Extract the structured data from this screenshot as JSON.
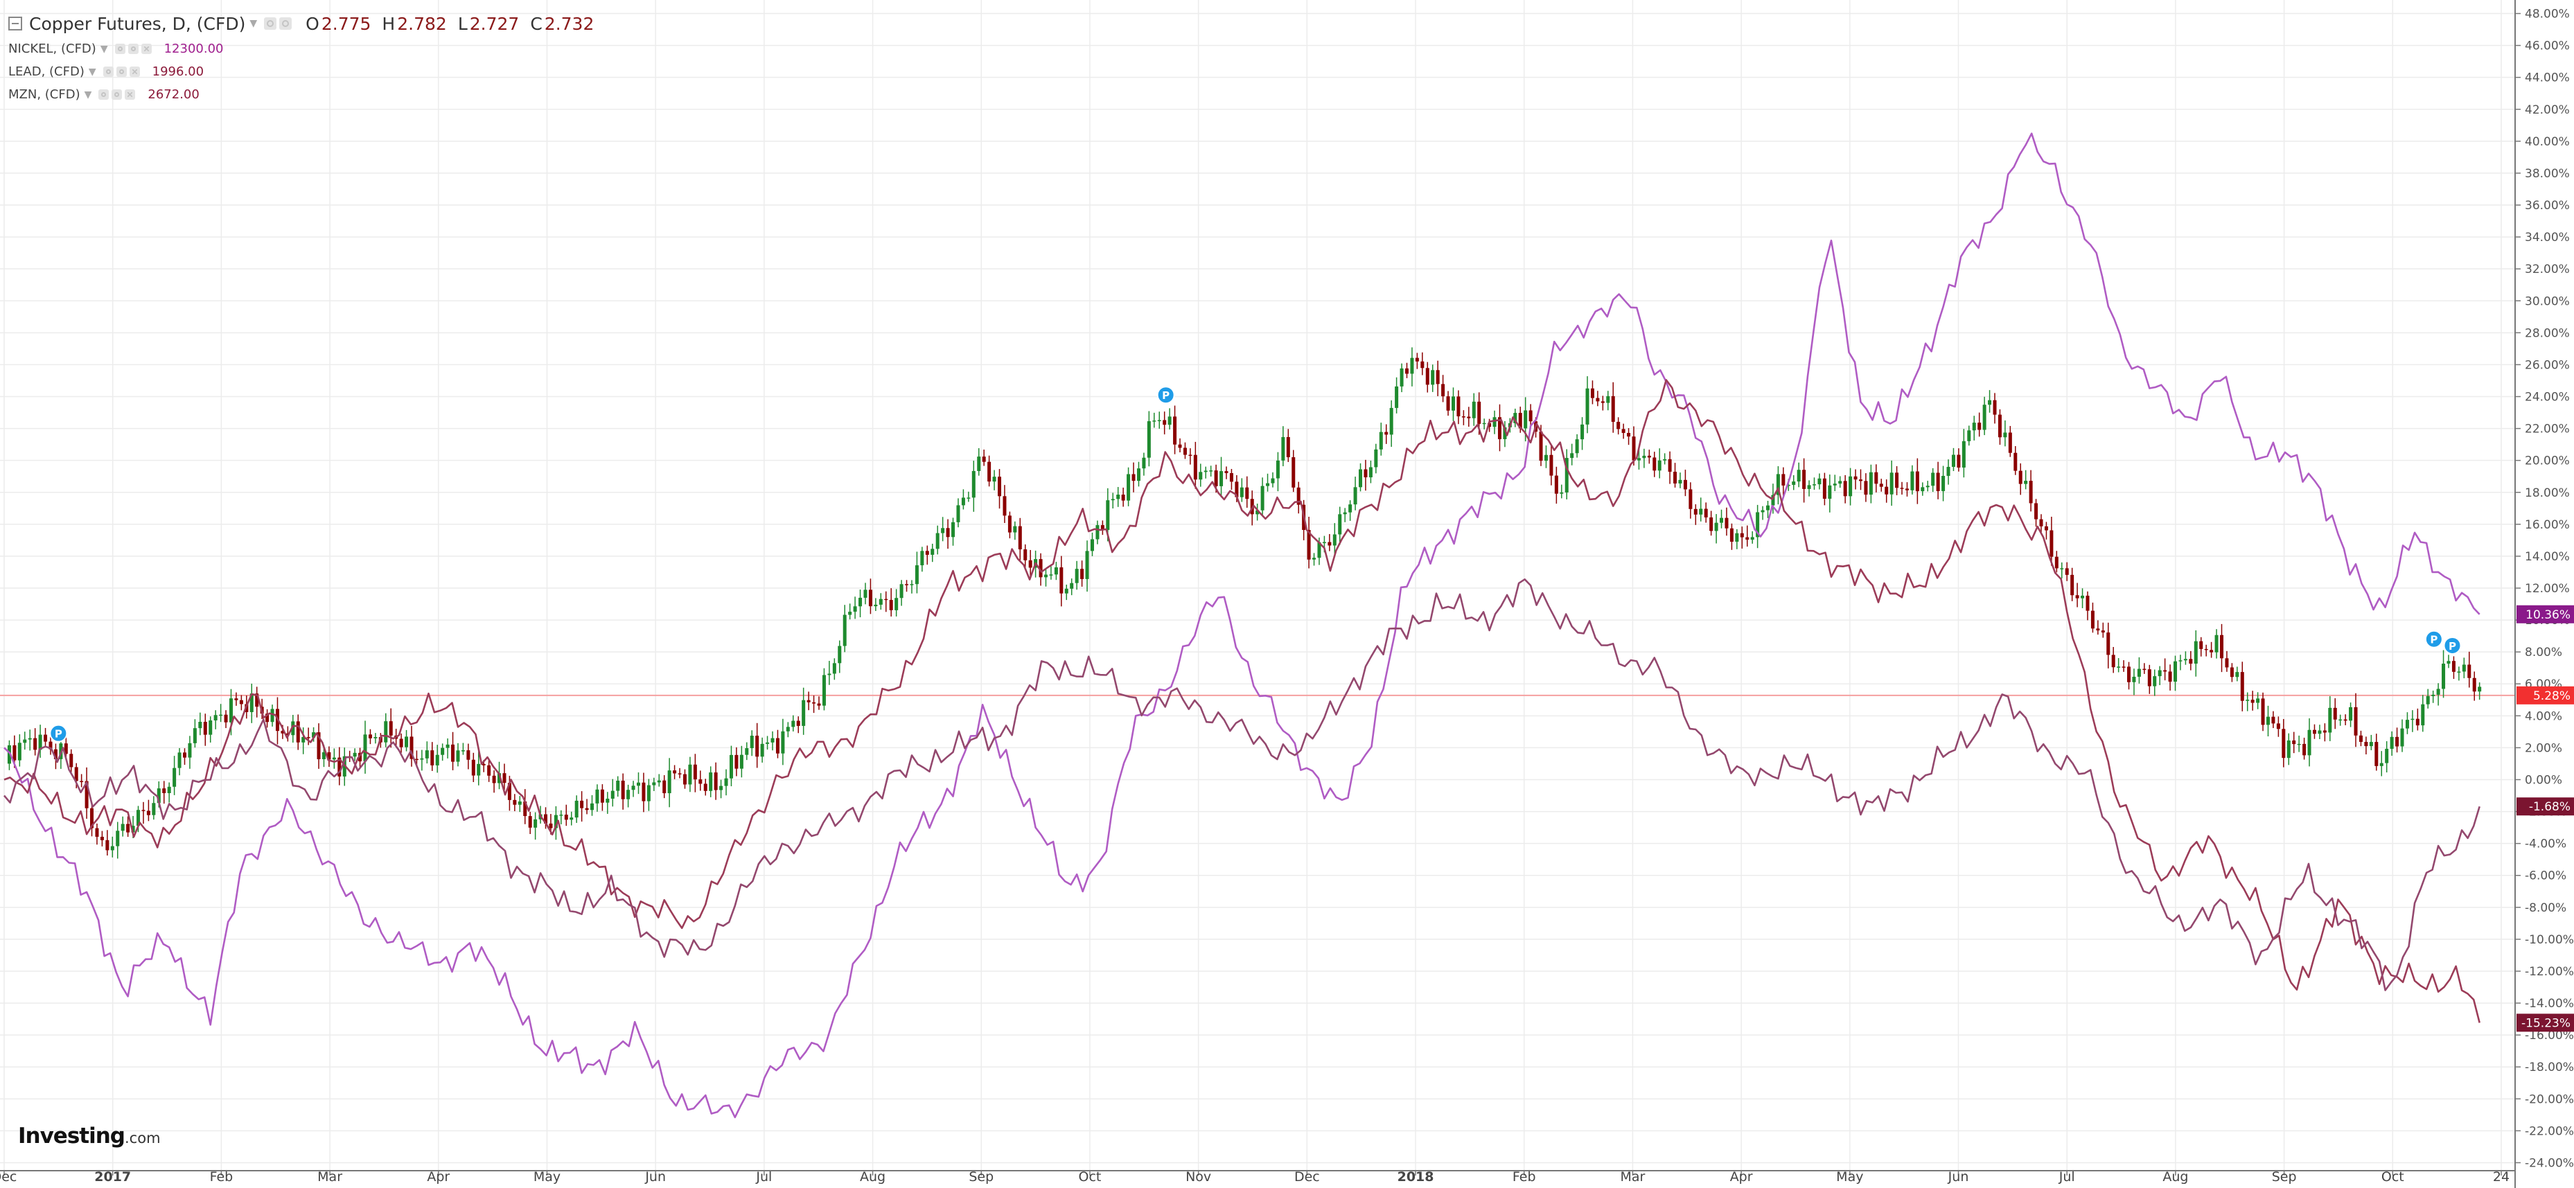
{
  "header": {
    "title": "Copper Futures, D, (CFD)",
    "ohlc": [
      {
        "label": "O",
        "value": "2.775"
      },
      {
        "label": "H",
        "value": "2.782"
      },
      {
        "label": "L",
        "value": "2.727"
      },
      {
        "label": "C",
        "value": "2.732"
      }
    ]
  },
  "overlays": [
    {
      "name": "NICKEL, (CFD)",
      "value": "12300.00",
      "color": "#b05cc4"
    },
    {
      "name": "LEAD, (CFD)",
      "value": "1996.00",
      "color": "#9c3c58"
    },
    {
      "name": "MZN, (CFD)",
      "value": "2672.00",
      "color": "#94486e"
    }
  ],
  "logo": {
    "name": "Investing",
    "suffix": ".com"
  },
  "chart_data": {
    "type": "candlestick_with_lines",
    "scale": "percent",
    "ylim": [
      -24.5,
      48.5
    ],
    "y_ticks": [
      "48.00%",
      "46.00%",
      "44.00%",
      "42.00%",
      "40.00%",
      "38.00%",
      "36.00%",
      "34.00%",
      "32.00%",
      "30.00%",
      "28.00%",
      "26.00%",
      "24.00%",
      "22.00%",
      "20.00%",
      "18.00%",
      "16.00%",
      "14.00%",
      "12.00%",
      "10.00%",
      "8.00%",
      "6.00%",
      "4.00%",
      "2.00%",
      "0.00%",
      "-2.00%",
      "-4.00%",
      "-6.00%",
      "-8.00%",
      "-10.00%",
      "-12.00%",
      "-14.00%",
      "-16.00%",
      "-18.00%",
      "-20.00%",
      "-22.00%",
      "-24.00%"
    ],
    "x_ticks": [
      "Dec",
      "2017",
      "Feb",
      "Mar",
      "Apr",
      "May",
      "Jun",
      "Jul",
      "Aug",
      "Sep",
      "Oct",
      "Nov",
      "Dec",
      "2018",
      "Feb",
      "Mar",
      "Apr",
      "May",
      "Jun",
      "Jul",
      "Aug",
      "Sep",
      "Oct",
      "24"
    ],
    "reference_line": 5.28,
    "grid": true,
    "badges": [
      {
        "label": "10.36%",
        "value": 10.36,
        "color": "#8a1a8a"
      },
      {
        "label": "5.28%",
        "value": 5.28,
        "color": "#f23030"
      },
      {
        "label": "-1.68%",
        "value": -1.68,
        "color": "#7b1430"
      },
      {
        "label": "-15.23%",
        "value": -15.23,
        "color": "#7b1430"
      }
    ],
    "markers": [
      {
        "label": "P",
        "month": 0.5,
        "value": 2.9
      },
      {
        "label": "P",
        "month": 10.7,
        "value": 24.1
      },
      {
        "label": "P",
        "month": 22.38,
        "value": 8.8
      },
      {
        "label": "P",
        "month": 22.55,
        "value": 8.4
      }
    ],
    "candles": {
      "name": "Copper Futures, D, (CFD)",
      "up_color": "#1e8a2e",
      "down_color": "#8b0000",
      "points": [
        [
          0,
          1
        ],
        [
          0.3,
          3
        ],
        [
          0.6,
          1
        ],
        [
          0.9,
          -4
        ],
        [
          1.2,
          -3
        ],
        [
          1.5,
          0
        ],
        [
          1.8,
          3
        ],
        [
          2.1,
          5
        ],
        [
          2.4,
          4
        ],
        [
          2.7,
          3
        ],
        [
          3.0,
          1
        ],
        [
          3.3,
          2
        ],
        [
          3.6,
          3
        ],
        [
          3.9,
          1
        ],
        [
          4.2,
          2
        ],
        [
          4.5,
          0
        ],
        [
          4.8,
          -2
        ],
        [
          5.1,
          -3
        ],
        [
          5.4,
          -1
        ],
        [
          5.7,
          -1
        ],
        [
          6.0,
          0
        ],
        [
          6.3,
          0
        ],
        [
          6.6,
          0
        ],
        [
          6.9,
          2
        ],
        [
          7.2,
          3
        ],
        [
          7.5,
          5
        ],
        [
          7.8,
          11
        ],
        [
          8.1,
          11
        ],
        [
          8.4,
          13
        ],
        [
          8.7,
          16
        ],
        [
          9.0,
          20
        ],
        [
          9.2,
          17
        ],
        [
          9.5,
          13
        ],
        [
          9.8,
          12
        ],
        [
          10.1,
          16
        ],
        [
          10.4,
          19
        ],
        [
          10.6,
          23
        ],
        [
          10.9,
          20
        ],
        [
          11.2,
          19
        ],
        [
          11.5,
          17
        ],
        [
          11.8,
          21
        ],
        [
          12.0,
          14
        ],
        [
          12.3,
          16
        ],
        [
          12.6,
          20
        ],
        [
          12.9,
          26
        ],
        [
          13.2,
          25
        ],
        [
          13.4,
          23
        ],
        [
          13.7,
          22
        ],
        [
          14.0,
          23
        ],
        [
          14.3,
          18
        ],
        [
          14.6,
          24
        ],
        [
          14.8,
          23
        ],
        [
          15.1,
          20
        ],
        [
          15.4,
          19
        ],
        [
          15.7,
          16
        ],
        [
          16.0,
          15
        ],
        [
          16.3,
          18
        ],
        [
          16.6,
          19
        ],
        [
          16.9,
          18
        ],
        [
          17.2,
          19
        ],
        [
          17.5,
          18
        ],
        [
          17.8,
          19
        ],
        [
          18.0,
          20
        ],
        [
          18.3,
          24
        ],
        [
          18.6,
          18
        ],
        [
          18.9,
          14
        ],
        [
          19.2,
          10
        ],
        [
          19.5,
          7
        ],
        [
          19.8,
          6
        ],
        [
          20.1,
          8
        ],
        [
          20.4,
          8
        ],
        [
          20.7,
          5
        ],
        [
          21.0,
          2
        ],
        [
          21.3,
          3
        ],
        [
          21.6,
          4
        ],
        [
          21.9,
          1
        ],
        [
          22.2,
          4
        ],
        [
          22.5,
          7
        ],
        [
          22.8,
          6
        ]
      ]
    },
    "series": [
      {
        "name": "NICKEL, (CFD)",
        "color": "#b05cc4",
        "points": [
          [
            0,
            2
          ],
          [
            0.4,
            -3
          ],
          [
            0.8,
            -8
          ],
          [
            1.1,
            -13
          ],
          [
            1.5,
            -10
          ],
          [
            1.9,
            -15
          ],
          [
            2.2,
            -5
          ],
          [
            2.6,
            -2
          ],
          [
            3.0,
            -5
          ],
          [
            3.3,
            -9
          ],
          [
            3.7,
            -10
          ],
          [
            4.0,
            -12
          ],
          [
            4.3,
            -10
          ],
          [
            4.7,
            -14
          ],
          [
            5.0,
            -17
          ],
          [
            5.4,
            -18
          ],
          [
            5.8,
            -16
          ],
          [
            6.2,
            -20
          ],
          [
            6.6,
            -21
          ],
          [
            7.0,
            -19
          ],
          [
            7.3,
            -17
          ],
          [
            7.6,
            -16
          ],
          [
            7.9,
            -11
          ],
          [
            8.2,
            -5
          ],
          [
            8.6,
            -2
          ],
          [
            9.0,
            4
          ],
          [
            9.4,
            -1
          ],
          [
            9.8,
            -7
          ],
          [
            10.1,
            -5
          ],
          [
            10.4,
            3
          ],
          [
            10.8,
            7
          ],
          [
            11.2,
            12
          ],
          [
            11.5,
            6
          ],
          [
            11.9,
            2
          ],
          [
            12.3,
            -2
          ],
          [
            12.6,
            3
          ],
          [
            12.9,
            12
          ],
          [
            13.2,
            15
          ],
          [
            13.6,
            17
          ],
          [
            14.0,
            20
          ],
          [
            14.3,
            27
          ],
          [
            14.6,
            29
          ],
          [
            15.0,
            30
          ],
          [
            15.2,
            26
          ],
          [
            15.5,
            23
          ],
          [
            15.8,
            18
          ],
          [
            16.2,
            15
          ],
          [
            16.5,
            20
          ],
          [
            16.8,
            34
          ],
          [
            17.1,
            24
          ],
          [
            17.4,
            22
          ],
          [
            17.7,
            27
          ],
          [
            18.0,
            32
          ],
          [
            18.3,
            35
          ],
          [
            18.6,
            40
          ],
          [
            18.9,
            38
          ],
          [
            19.2,
            34
          ],
          [
            19.5,
            27
          ],
          [
            19.8,
            25
          ],
          [
            20.1,
            22
          ],
          [
            20.4,
            26
          ],
          [
            20.7,
            20
          ],
          [
            21.0,
            21
          ],
          [
            21.3,
            18
          ],
          [
            21.6,
            14
          ],
          [
            21.9,
            10
          ],
          [
            22.2,
            16
          ],
          [
            22.5,
            12
          ],
          [
            22.8,
            10.36
          ]
        ]
      },
      {
        "name": "LEAD, (CFD)",
        "color": "#9c3c58",
        "points": [
          [
            0,
            0
          ],
          [
            0.4,
            -1
          ],
          [
            0.8,
            -3
          ],
          [
            1.1,
            -2
          ],
          [
            1.5,
            -4
          ],
          [
            1.9,
            1
          ],
          [
            2.3,
            5
          ],
          [
            2.7,
            3
          ],
          [
            3.1,
            1
          ],
          [
            3.5,
            2
          ],
          [
            3.9,
            5
          ],
          [
            4.3,
            3
          ],
          [
            4.7,
            -1
          ],
          [
            5.1,
            -3
          ],
          [
            5.5,
            -6
          ],
          [
            5.9,
            -8
          ],
          [
            6.3,
            -9
          ],
          [
            6.7,
            -5
          ],
          [
            7.1,
            0
          ],
          [
            7.5,
            2
          ],
          [
            7.9,
            3
          ],
          [
            8.3,
            7
          ],
          [
            8.7,
            12
          ],
          [
            9.1,
            14
          ],
          [
            9.5,
            13
          ],
          [
            9.9,
            16
          ],
          [
            10.3,
            15
          ],
          [
            10.7,
            20
          ],
          [
            11.1,
            18
          ],
          [
            11.5,
            17
          ],
          [
            11.9,
            17
          ],
          [
            12.2,
            14
          ],
          [
            12.6,
            17
          ],
          [
            13.0,
            21
          ],
          [
            13.4,
            22
          ],
          [
            13.8,
            22
          ],
          [
            14.2,
            22
          ],
          [
            14.5,
            18
          ],
          [
            14.9,
            18
          ],
          [
            15.3,
            25
          ],
          [
            15.7,
            22
          ],
          [
            16.1,
            19
          ],
          [
            16.5,
            16
          ],
          [
            16.9,
            13
          ],
          [
            17.3,
            12
          ],
          [
            17.7,
            12
          ],
          [
            18.1,
            16
          ],
          [
            18.5,
            17
          ],
          [
            18.8,
            15
          ],
          [
            19.1,
            8
          ],
          [
            19.5,
            -2
          ],
          [
            19.9,
            -6
          ],
          [
            20.3,
            -4
          ],
          [
            20.7,
            -7
          ],
          [
            21.1,
            -13
          ],
          [
            21.5,
            -8
          ],
          [
            21.9,
            -12
          ],
          [
            22.3,
            -13
          ],
          [
            22.6,
            -12
          ],
          [
            22.8,
            -15.23
          ]
        ]
      },
      {
        "name": "MZN, (CFD)",
        "color": "#94486e",
        "points": [
          [
            0,
            -1
          ],
          [
            0.4,
            2
          ],
          [
            0.8,
            -1
          ],
          [
            1.2,
            0
          ],
          [
            1.6,
            -2
          ],
          [
            2.0,
            1
          ],
          [
            2.4,
            3
          ],
          [
            2.8,
            -1
          ],
          [
            3.2,
            1
          ],
          [
            3.6,
            2
          ],
          [
            4.0,
            -1
          ],
          [
            4.4,
            -3
          ],
          [
            4.8,
            -6
          ],
          [
            5.2,
            -8
          ],
          [
            5.6,
            -7
          ],
          [
            6.0,
            -10
          ],
          [
            6.4,
            -11
          ],
          [
            6.8,
            -7
          ],
          [
            7.2,
            -4
          ],
          [
            7.6,
            -3
          ],
          [
            8.0,
            -1
          ],
          [
            8.4,
            1
          ],
          [
            8.8,
            2
          ],
          [
            9.2,
            3
          ],
          [
            9.6,
            7
          ],
          [
            10.0,
            7
          ],
          [
            10.4,
            5
          ],
          [
            10.8,
            5
          ],
          [
            11.2,
            4
          ],
          [
            11.6,
            2
          ],
          [
            12.0,
            2
          ],
          [
            12.4,
            6
          ],
          [
            12.8,
            9
          ],
          [
            13.2,
            11
          ],
          [
            13.6,
            10
          ],
          [
            14.0,
            12
          ],
          [
            14.4,
            10
          ],
          [
            14.8,
            8
          ],
          [
            15.2,
            7
          ],
          [
            15.6,
            3
          ],
          [
            16.0,
            0
          ],
          [
            16.4,
            1
          ],
          [
            16.8,
            0
          ],
          [
            17.2,
            -2
          ],
          [
            17.6,
            0
          ],
          [
            18.0,
            2
          ],
          [
            18.4,
            5
          ],
          [
            18.8,
            2
          ],
          [
            19.2,
            0
          ],
          [
            19.6,
            -6
          ],
          [
            20.0,
            -9
          ],
          [
            20.4,
            -8
          ],
          [
            20.8,
            -11
          ],
          [
            21.2,
            -6
          ],
          [
            21.6,
            -9
          ],
          [
            22.0,
            -13
          ],
          [
            22.3,
            -6
          ],
          [
            22.6,
            -4
          ],
          [
            22.8,
            -1.68
          ]
        ]
      }
    ]
  }
}
